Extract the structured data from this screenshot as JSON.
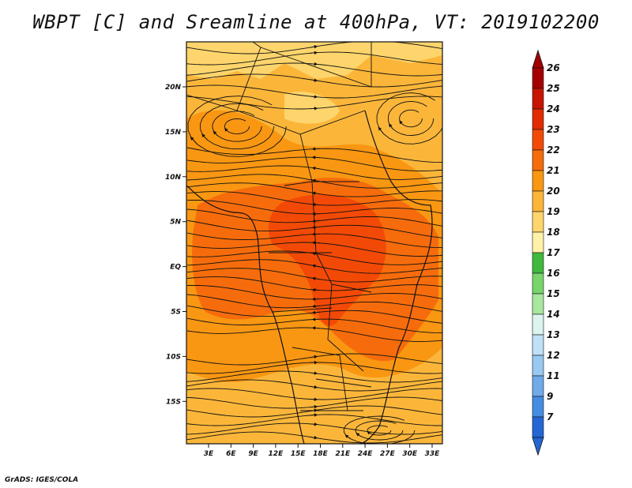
{
  "title": "WBPT [C] and Sreamline at 400hPa, VT: 2019102200",
  "footer": "GrADS: IGES/COLA",
  "latitude_labels": [
    "20N",
    "15N",
    "10N",
    "5N",
    "EQ",
    "5S",
    "10S",
    "15S"
  ],
  "longitude_labels": [
    "3E",
    "6E",
    "9E",
    "12E",
    "15E",
    "18E",
    "21E",
    "24E",
    "27E",
    "30E",
    "33E"
  ],
  "colorbar": {
    "labels": [
      "26",
      "25",
      "24",
      "23",
      "22",
      "21",
      "20",
      "19",
      "18",
      "17",
      "16",
      "15",
      "14",
      "13",
      "12",
      "11",
      "9",
      "7"
    ],
    "colors": [
      "#a50000",
      "#c81400",
      "#e22b00",
      "#f24a06",
      "#f66c0c",
      "#f99712",
      "#fbb63a",
      "#fdd56c",
      "#fff2a8",
      "#3fb83f",
      "#78d46b",
      "#a9e6a0",
      "#dcf3ee",
      "#bfe1f5",
      "#99c8f0",
      "#6faae9",
      "#468ce2",
      "#2466d4"
    ]
  },
  "colors": {
    "field_low": "#fbb63a",
    "field_mid": "#f99712",
    "field_high": "#f66c0c",
    "field_peak": "#f24a06",
    "field_cool": "#fdd56c"
  }
}
